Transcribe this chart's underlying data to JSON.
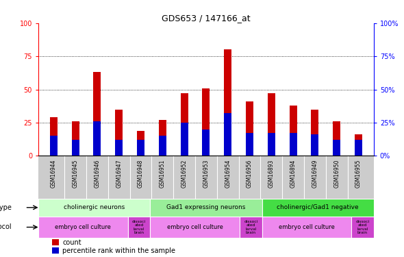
{
  "title": "GDS653 / 147166_at",
  "samples": [
    "GSM16944",
    "GSM16945",
    "GSM16946",
    "GSM16947",
    "GSM16948",
    "GSM16951",
    "GSM16952",
    "GSM16953",
    "GSM16954",
    "GSM16956",
    "GSM16893",
    "GSM16894",
    "GSM16949",
    "GSM16950",
    "GSM16955"
  ],
  "count_values": [
    29,
    26,
    63,
    35,
    19,
    27,
    47,
    51,
    80,
    41,
    47,
    38,
    35,
    26,
    16
  ],
  "pct_values": [
    15,
    12,
    26,
    12,
    12,
    15,
    25,
    20,
    32,
    17,
    17,
    17,
    16,
    12,
    12
  ],
  "cell_type_groups": [
    {
      "label": "cholinergic neurons",
      "start": 0,
      "end": 5,
      "color": "#ccffcc"
    },
    {
      "label": "Gad1 expressing neurons",
      "start": 5,
      "end": 10,
      "color": "#99ee99"
    },
    {
      "label": "cholinergic/Gad1 negative",
      "start": 10,
      "end": 15,
      "color": "#44dd44"
    }
  ],
  "protocol_groups": [
    {
      "label": "embryo cell culture",
      "start": 0,
      "end": 4,
      "color": "#ee88ee"
    },
    {
      "label": "dissoci\nated\nlarval\nbrain",
      "start": 4,
      "end": 5,
      "color": "#cc44cc"
    },
    {
      "label": "embryo cell culture",
      "start": 5,
      "end": 9,
      "color": "#ee88ee"
    },
    {
      "label": "dissoci\nated\nlarval\nbrain",
      "start": 9,
      "end": 10,
      "color": "#cc44cc"
    },
    {
      "label": "embryo cell culture",
      "start": 10,
      "end": 14,
      "color": "#ee88ee"
    },
    {
      "label": "dissoci\nated\nlarval\nbrain",
      "start": 14,
      "end": 15,
      "color": "#cc44cc"
    }
  ],
  "ylim": [
    0,
    100
  ],
  "bar_width": 0.35,
  "count_color": "#cc0000",
  "pct_color": "#0000cc",
  "yticks": [
    0,
    25,
    50,
    75,
    100
  ],
  "ytick_labels_left": [
    "0",
    "25",
    "50",
    "75",
    "100"
  ],
  "ytick_labels_right": [
    "0%",
    "25%",
    "50%",
    "75%",
    "100%"
  ],
  "xticklabel_bg": "#cccccc",
  "legend_count_label": "count",
  "legend_pct_label": "percentile rank within the sample"
}
